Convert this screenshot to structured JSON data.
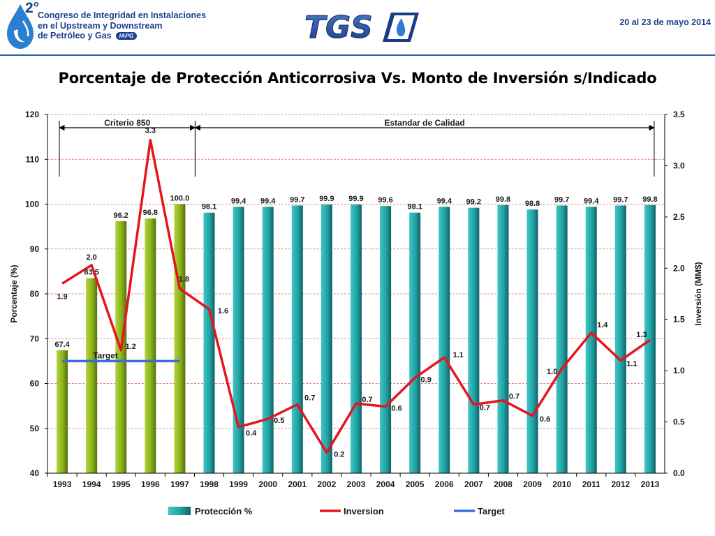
{
  "header": {
    "logo_superscript": "2°",
    "logo_lines": [
      "Congreso de Integridad en Instalaciones",
      "en el Upstream y Downstream",
      "de Petróleo y Gas"
    ],
    "logo_badge": "IAPG",
    "brand": "TGS",
    "date": "20 al 23 de mayo 2014"
  },
  "colors": {
    "green_bar": "#8fb51c",
    "teal_bar": "#2aa9ab",
    "inversion_line": "#e6141e",
    "target_line": "#3b6fd6",
    "brand_blue": "#1b3f8f",
    "grid": "#e06060"
  },
  "chart_data": {
    "type": "bar",
    "title": "Porcentaje de Protección Anticorrosiva Vs. Monto de Inversión s/Indicado",
    "categories": [
      "1993",
      "1994",
      "1995",
      "1996",
      "1997",
      "1998",
      "1999",
      "2000",
      "2001",
      "2002",
      "2003",
      "2004",
      "2005",
      "2006",
      "2007",
      "2008",
      "2009",
      "2010",
      "2011",
      "2012",
      "2013"
    ],
    "series": [
      {
        "name": "Protección %",
        "kind": "bar",
        "axis": "left",
        "values": [
          67.4,
          83.5,
          96.2,
          96.8,
          100.0,
          98.1,
          99.4,
          99.4,
          99.7,
          99.9,
          99.9,
          99.6,
          98.1,
          99.4,
          99.2,
          99.8,
          98.8,
          99.7,
          99.4,
          99.7,
          99.8
        ],
        "labels": [
          "67.4",
          "83.5",
          "96.2",
          "96.8",
          "100.0",
          "98.1",
          "99.4",
          "99.4",
          "99.7",
          "99.9",
          "99.9",
          "99.6",
          "98.1",
          "99.4",
          "99.2",
          "99.8",
          "98.8",
          "99.7",
          "99.4",
          "99.7",
          "99.8"
        ]
      },
      {
        "name": "Inversion",
        "kind": "line",
        "axis": "right",
        "values": [
          1.85,
          2.03,
          1.2,
          3.25,
          1.8,
          1.6,
          0.45,
          0.53,
          0.67,
          0.2,
          0.68,
          0.65,
          0.93,
          1.13,
          0.67,
          0.71,
          0.56,
          1.02,
          1.37,
          1.1,
          1.3
        ],
        "labels": [
          "1.9",
          "2.0",
          "1.2",
          "3.3",
          "1.8",
          "1.6",
          "0.4",
          "0.5",
          "0.7",
          "0.2",
          "0.7",
          "0.6",
          "0.9",
          "1.1",
          "0.7",
          "0.7",
          "0.6",
          "1.0",
          "1.4",
          "1.1",
          "1.3"
        ]
      },
      {
        "name": "Target",
        "kind": "line",
        "axis": "left",
        "value": 65,
        "from": "1993",
        "to": "1997",
        "label": "Target"
      }
    ],
    "green_categories": [
      "1993",
      "1994",
      "1995",
      "1996",
      "1997"
    ],
    "ylabel": "Porcentaje (%)",
    "ylabel_right": "Inversión (MM$)",
    "ylim": [
      40,
      120
    ],
    "ylim_right": [
      0,
      3.5
    ],
    "yticks": [
      "40",
      "50",
      "60",
      "70",
      "80",
      "90",
      "100",
      "110",
      "120"
    ],
    "yticks_right": [
      "0.0",
      "0.5",
      "1.0",
      "1.5",
      "2.0",
      "2.5",
      "3.0",
      "3.5"
    ],
    "annotations": [
      {
        "text": "Criterio  850",
        "from": "1993",
        "to": "1997"
      },
      {
        "text": "Estandar de Calidad",
        "from": "1997",
        "to": "2013"
      }
    ],
    "grid": true,
    "legend_position": "bottom"
  }
}
